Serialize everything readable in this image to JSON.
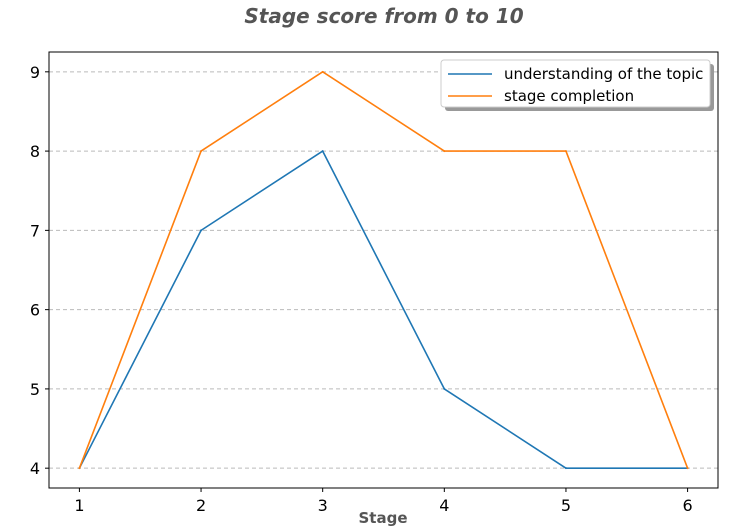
{
  "chart_data": {
    "type": "line",
    "title": "Stage score from 0 to 10",
    "xlabel": "Stage",
    "ylabel": "",
    "x": [
      1,
      2,
      3,
      4,
      5,
      6
    ],
    "xticks": [
      "1",
      "2",
      "3",
      "4",
      "5",
      "6"
    ],
    "yticks": [
      "4",
      "5",
      "6",
      "7",
      "8",
      "9"
    ],
    "xlim": [
      0.75,
      6.25
    ],
    "ylim": [
      3.75,
      9.25
    ],
    "grid": "horizontal-dashed",
    "legend": "top-right",
    "series": [
      {
        "name": "understanding of the topic",
        "color": "#1f77b4",
        "values": [
          4,
          7,
          8,
          5,
          4,
          4
        ]
      },
      {
        "name": "stage completion",
        "color": "#ff7f0e",
        "values": [
          4,
          8,
          9,
          8,
          8,
          4
        ]
      }
    ]
  }
}
